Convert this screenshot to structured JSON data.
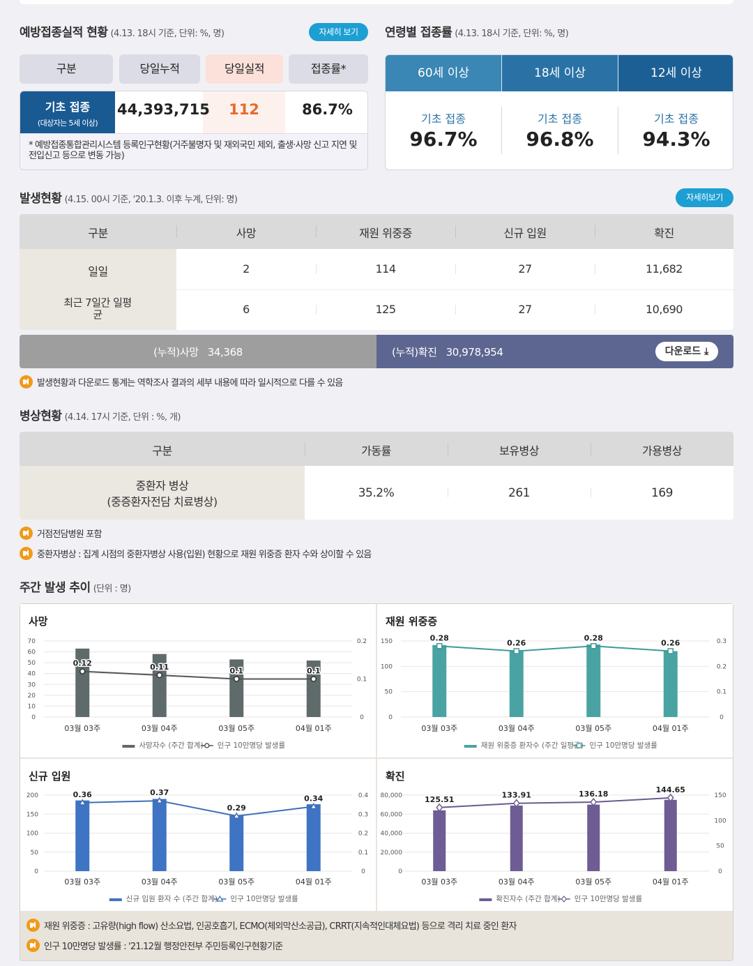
{
  "vaccination": {
    "title": "예방접종실적 현황",
    "subtitle": "(4.13. 18시 기준, 단위: %, 명)",
    "detail_button": "자세히 보기",
    "headers": [
      "구분",
      "당일누적",
      "당일실적",
      "접종률*"
    ],
    "row_label": "기초 접종",
    "row_sublabel": "(대상자는 5세 이상)",
    "cumulative": "44,393,715",
    "daily": "112",
    "rate": "86.7%",
    "footnote": "* 예방접종통합관리시스템 등록인구현황(거주불명자 및 재외국민 제외, 출생·사망 신고 지연 및 전입신고 등으로 변동 가능)"
  },
  "age_rate": {
    "title": "연령별 접종률",
    "subtitle": "(4.13. 18시 기준, 단위: %, 명)",
    "tabs": [
      "60세 이상",
      "18세 이상",
      "12세 이상"
    ],
    "items": [
      {
        "label": "기초 접종",
        "value": "96.7%"
      },
      {
        "label": "기초 접종",
        "value": "96.8%"
      },
      {
        "label": "기초 접종",
        "value": "94.3%"
      }
    ]
  },
  "outbreak": {
    "title": "발생현황",
    "subtitle": "(4.15. 00시 기준, '20.1.3. 이후 누계, 단위: 명)",
    "detail_button": "자세히보기",
    "headers": [
      "구분",
      "사망",
      "재원 위중증",
      "신규 입원",
      "확진"
    ],
    "rows": [
      {
        "label": "일일",
        "values": [
          "2",
          "114",
          "27",
          "11,682"
        ]
      },
      {
        "label": "최근 7일간 일평균",
        "values": [
          "6",
          "125",
          "27",
          "10,690"
        ]
      }
    ],
    "cum_death_label": "(누적)사망",
    "cum_death_value": "34,368",
    "cum_confirmed_label": "(누적)확진",
    "cum_confirmed_value": "30,978,954",
    "download_button": "다운로드",
    "note": "발생현황과 다운로드 통계는 역학조사 결과의 세부 내용에 따라 일시적으로 다를 수 있음"
  },
  "beds": {
    "title": "병상현황",
    "subtitle": "(4.14. 17시 기준, 단위 : %, 개)",
    "headers": [
      "구분",
      "가동률",
      "보유병상",
      "가용병상"
    ],
    "row_label_1": "중환자 병상",
    "row_label_2": "(중증환자전담 치료병상)",
    "values": [
      "35.2%",
      "261",
      "169"
    ],
    "notes": [
      "거점전담병원 포함",
      "중환자병상 : 집계 시점의 중환자병상 사용(입원) 현황으로 재원 위중증 환자 수와 상이할 수 있음"
    ]
  },
  "weekly": {
    "title": "주간 발생 추이",
    "subtitle": "(단위 : 명)",
    "notes": [
      "재원 위중증 : 고유량(high flow) 산소요법, 인공호흡기, ECMO(체외막산소공급), CRRT(지속적인대체요법) 등으로 격리 치료 중인 환자",
      "인구 10만명당 발생률 : '21.12월 행정안전부 주민등록인구현황기준"
    ]
  },
  "chart_data": [
    {
      "type": "bar",
      "title": "사망",
      "categories": [
        "03월 03주",
        "03월 04주",
        "03월 05주",
        "04월 01주"
      ],
      "series": [
        {
          "name": "사망자수 (주간 합계)",
          "type": "bar",
          "axis": "left",
          "values": [
            63,
            58,
            53,
            52
          ],
          "color": "#5f6a6a"
        },
        {
          "name": "인구 10만명당 발생률",
          "type": "line",
          "axis": "right",
          "values": [
            0.12,
            0.11,
            0.1,
            0.1
          ],
          "color": "#555555"
        }
      ],
      "left_ticks": [
        "0",
        "10",
        "20",
        "30",
        "40",
        "50",
        "60",
        "70"
      ],
      "right_ticks": [
        "0",
        "0.1",
        "0.2"
      ],
      "ylim": [
        0,
        70
      ],
      "y2lim": [
        0,
        0.2
      ],
      "marker": "circle"
    },
    {
      "type": "bar",
      "title": "재원 위중증",
      "categories": [
        "03월 03주",
        "03월 04주",
        "03월 05주",
        "04월 01주"
      ],
      "series": [
        {
          "name": "재원 위중증 환자수 (주간 일평균)",
          "type": "bar",
          "axis": "left",
          "values": [
            142,
            130,
            143,
            130
          ],
          "color": "#4aa3a3"
        },
        {
          "name": "인구 10만명당 발생률",
          "type": "line",
          "axis": "right",
          "values": [
            0.28,
            0.26,
            0.28,
            0.26
          ],
          "color": "#3f9a9a"
        }
      ],
      "left_ticks": [
        "0",
        "50",
        "100",
        "150"
      ],
      "right_ticks": [
        "0",
        "0.1",
        "0.2",
        "0.3"
      ],
      "ylim": [
        0,
        150
      ],
      "y2lim": [
        0,
        0.3
      ],
      "marker": "square"
    },
    {
      "type": "bar",
      "title": "신규 입원",
      "categories": [
        "03월 03주",
        "03월 04주",
        "03월 05주",
        "04월 01주"
      ],
      "series": [
        {
          "name": "신규 입원 환자 수 (주간 합계)",
          "type": "bar",
          "axis": "left",
          "values": [
            186,
            190,
            148,
            176
          ],
          "color": "#3f74c4"
        },
        {
          "name": "인구 10만명당 발생률",
          "type": "line",
          "axis": "right",
          "values": [
            0.36,
            0.37,
            0.29,
            0.34
          ],
          "color": "#3f6fb8"
        }
      ],
      "left_ticks": [
        "0",
        "50",
        "100",
        "150",
        "200"
      ],
      "right_ticks": [
        "0",
        "0.1",
        "0.2",
        "0.3",
        "0.4"
      ],
      "ylim": [
        0,
        200
      ],
      "y2lim": [
        0,
        0.4
      ],
      "marker": "triangle"
    },
    {
      "type": "bar",
      "title": "확진",
      "categories": [
        "03월 03주",
        "03월 04주",
        "03월 05주",
        "04월 01주"
      ],
      "series": [
        {
          "name": "확진자수 (주간 합계)",
          "type": "bar",
          "axis": "left",
          "values": [
            64000,
            69000,
            70000,
            75000
          ],
          "color": "#6e5c94"
        },
        {
          "name": "인구 10만명당 발생률",
          "type": "line",
          "axis": "right",
          "values": [
            125.51,
            133.91,
            136.18,
            144.65
          ],
          "color": "#6b5b8e"
        }
      ],
      "left_ticks": [
        "0",
        "20,000",
        "40,000",
        "60,000",
        "80,000"
      ],
      "right_ticks": [
        "0",
        "50",
        "100",
        "150"
      ],
      "ylim": [
        0,
        80000
      ],
      "y2lim": [
        0,
        150
      ],
      "marker": "diamond"
    }
  ]
}
